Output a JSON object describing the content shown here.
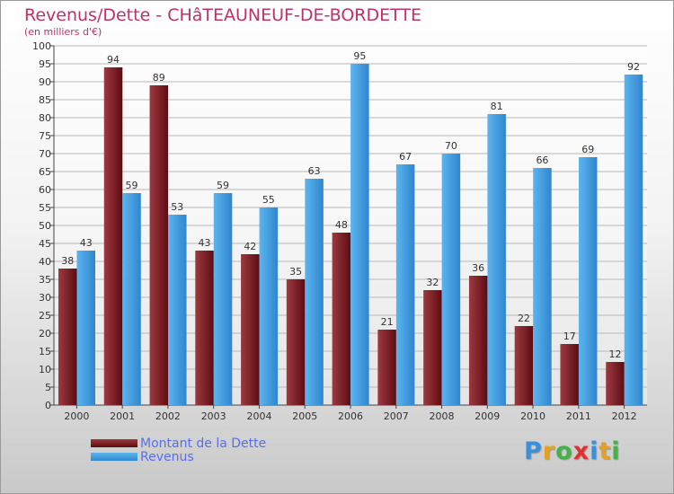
{
  "title": "Revenus/Dette - CHâTEAUNEUF-DE-BORDETTE",
  "subtitle": "(en milliers d'€)",
  "chart_data": {
    "type": "bar",
    "categories": [
      "2000",
      "2001",
      "2002",
      "2003",
      "2004",
      "2005",
      "2006",
      "2007",
      "2008",
      "2009",
      "2010",
      "2011",
      "2012"
    ],
    "series": [
      {
        "name": "Montant de la Dette",
        "values": [
          38,
          94,
          89,
          43,
          42,
          35,
          48,
          21,
          32,
          36,
          22,
          17,
          12
        ],
        "color": "#7a1a20"
      },
      {
        "name": "Revenus",
        "values": [
          43,
          59,
          53,
          59,
          55,
          63,
          95,
          67,
          70,
          81,
          66,
          69,
          92
        ],
        "color": "#4a9fe0"
      }
    ],
    "ylim": [
      0,
      100
    ],
    "ytick_step": 5,
    "grid": true,
    "legend": "bottom-left"
  },
  "logo": {
    "text": "Proxiti",
    "letters": [
      {
        "char": "P",
        "color": "#3a8fd8"
      },
      {
        "char": "r",
        "color": "#e8a020"
      },
      {
        "char": "o",
        "color": "#48b048"
      },
      {
        "char": "x",
        "color": "#e03030"
      },
      {
        "char": "i",
        "color": "#3a8fd8"
      },
      {
        "char": "t",
        "color": "#e8a020"
      },
      {
        "char": "i",
        "color": "#48b048"
      }
    ]
  }
}
